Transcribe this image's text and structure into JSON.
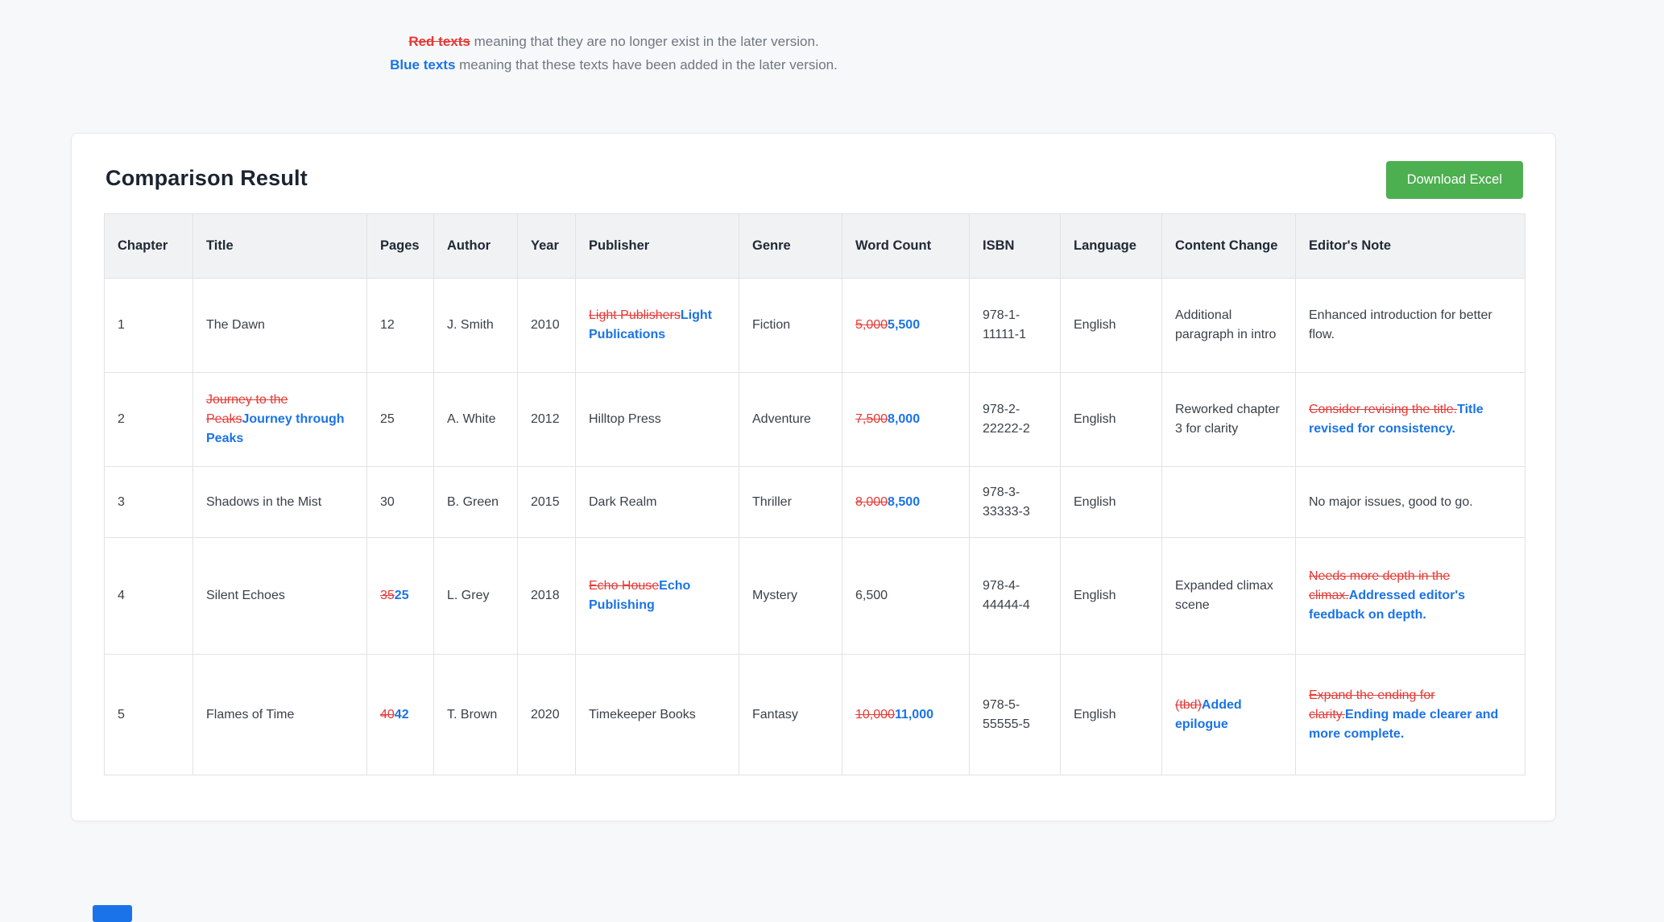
{
  "legend": {
    "removed_label": "Red texts",
    "removed_desc": " meaning that they are no longer exist in the later version.",
    "added_label": "Blue texts",
    "added_desc": " meaning that these texts have been added in the later version."
  },
  "card": {
    "title": "Comparison Result",
    "download_button_label": "Download Excel"
  },
  "colors": {
    "removed": "#e53935",
    "added": "#1a73e8",
    "button_green": "#4caf50"
  },
  "table": {
    "headers": [
      "Chapter",
      "Title",
      "Pages",
      "Author",
      "Year",
      "Publisher",
      "Genre",
      "Word Count",
      "ISBN",
      "Language",
      "Content Change",
      "Editor's Note"
    ],
    "rows": [
      {
        "cells": [
          [
            {
              "text": "1",
              "type": "normal"
            }
          ],
          [
            {
              "text": "The Dawn",
              "type": "normal"
            }
          ],
          [
            {
              "text": "12",
              "type": "normal"
            }
          ],
          [
            {
              "text": "J. Smith",
              "type": "normal"
            }
          ],
          [
            {
              "text": "2010",
              "type": "normal"
            }
          ],
          [
            {
              "text": "Light Publishers",
              "type": "removed"
            },
            {
              "text": "Light Publications",
              "type": "added"
            }
          ],
          [
            {
              "text": "Fiction",
              "type": "normal"
            }
          ],
          [
            {
              "text": "5,000",
              "type": "removed"
            },
            {
              "text": "5,500",
              "type": "added"
            }
          ],
          [
            {
              "text": "978-1-11111-1",
              "type": "normal"
            }
          ],
          [
            {
              "text": "English",
              "type": "normal"
            }
          ],
          [
            {
              "text": "Additional paragraph in intro",
              "type": "normal"
            }
          ],
          [
            {
              "text": "Enhanced introduction for better flow.",
              "type": "normal"
            }
          ]
        ]
      },
      {
        "cells": [
          [
            {
              "text": "2",
              "type": "normal"
            }
          ],
          [
            {
              "text": "Journey to the Peaks",
              "type": "removed"
            },
            {
              "text": "Journey through Peaks",
              "type": "added"
            }
          ],
          [
            {
              "text": "25",
              "type": "normal"
            }
          ],
          [
            {
              "text": "A. White",
              "type": "normal"
            }
          ],
          [
            {
              "text": "2012",
              "type": "normal"
            }
          ],
          [
            {
              "text": "Hilltop Press",
              "type": "normal"
            }
          ],
          [
            {
              "text": "Adventure",
              "type": "normal"
            }
          ],
          [
            {
              "text": "7,500",
              "type": "removed"
            },
            {
              "text": "8,000",
              "type": "added"
            }
          ],
          [
            {
              "text": "978-2-22222-2",
              "type": "normal"
            }
          ],
          [
            {
              "text": "English",
              "type": "normal"
            }
          ],
          [
            {
              "text": "Reworked chapter 3 for clarity",
              "type": "normal"
            }
          ],
          [
            {
              "text": "Consider revising the title.",
              "type": "removed"
            },
            {
              "text": "Title revised for consistency.",
              "type": "added"
            }
          ]
        ]
      },
      {
        "cells": [
          [
            {
              "text": "3",
              "type": "normal"
            }
          ],
          [
            {
              "text": "Shadows in the Mist",
              "type": "normal"
            }
          ],
          [
            {
              "text": "30",
              "type": "normal"
            }
          ],
          [
            {
              "text": "B. Green",
              "type": "normal"
            }
          ],
          [
            {
              "text": "2015",
              "type": "normal"
            }
          ],
          [
            {
              "text": "Dark Realm",
              "type": "normal"
            }
          ],
          [
            {
              "text": "Thriller",
              "type": "normal"
            }
          ],
          [
            {
              "text": "8,000",
              "type": "removed"
            },
            {
              "text": "8,500",
              "type": "added"
            }
          ],
          [
            {
              "text": "978-3-33333-3",
              "type": "normal"
            }
          ],
          [
            {
              "text": "English",
              "type": "normal"
            }
          ],
          [],
          [
            {
              "text": "No major issues, good to go.",
              "type": "normal"
            }
          ]
        ]
      },
      {
        "cells": [
          [
            {
              "text": "4",
              "type": "normal"
            }
          ],
          [
            {
              "text": "Silent Echoes",
              "type": "normal"
            }
          ],
          [
            {
              "text": "35",
              "type": "removed"
            },
            {
              "text": "25",
              "type": "added"
            }
          ],
          [
            {
              "text": "L. Grey",
              "type": "normal"
            }
          ],
          [
            {
              "text": "2018",
              "type": "normal"
            }
          ],
          [
            {
              "text": "Echo House",
              "type": "removed"
            },
            {
              "text": "Echo Publishing",
              "type": "added"
            }
          ],
          [
            {
              "text": "Mystery",
              "type": "normal"
            }
          ],
          [
            {
              "text": "6,500",
              "type": "normal"
            }
          ],
          [
            {
              "text": "978-4-44444-4",
              "type": "normal"
            }
          ],
          [
            {
              "text": "English",
              "type": "normal"
            }
          ],
          [
            {
              "text": "Expanded climax scene",
              "type": "normal"
            }
          ],
          [
            {
              "text": "Needs more depth in the climax.",
              "type": "removed"
            },
            {
              "text": "Addressed editor's feedback on depth.",
              "type": "added"
            }
          ]
        ]
      },
      {
        "cells": [
          [
            {
              "text": "5",
              "type": "normal"
            }
          ],
          [
            {
              "text": "Flames of Time",
              "type": "normal"
            }
          ],
          [
            {
              "text": "40",
              "type": "removed"
            },
            {
              "text": "42",
              "type": "added"
            }
          ],
          [
            {
              "text": "T. Brown",
              "type": "normal"
            }
          ],
          [
            {
              "text": "2020",
              "type": "normal"
            }
          ],
          [
            {
              "text": "Timekeeper Books",
              "type": "normal"
            }
          ],
          [
            {
              "text": "Fantasy",
              "type": "normal"
            }
          ],
          [
            {
              "text": "10,000",
              "type": "removed"
            },
            {
              "text": "11,000",
              "type": "added"
            }
          ],
          [
            {
              "text": "978-5-55555-5",
              "type": "normal"
            }
          ],
          [
            {
              "text": "English",
              "type": "normal"
            }
          ],
          [
            {
              "text": "(tbd)",
              "type": "removed"
            },
            {
              "text": "Added epilogue",
              "type": "added"
            }
          ],
          [
            {
              "text": "Expand the ending for clarity.",
              "type": "removed"
            },
            {
              "text": "Ending made clearer and more complete.",
              "type": "added"
            }
          ]
        ]
      }
    ]
  }
}
